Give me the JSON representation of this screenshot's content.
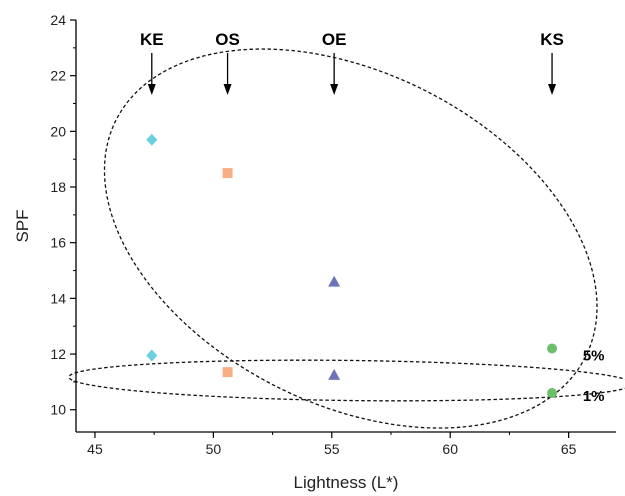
{
  "chart_data": {
    "type": "scatter",
    "title": "",
    "xlabel": "Lightness (L*)",
    "ylabel": "SPF",
    "xlim": [
      44.2,
      67.0
    ],
    "ylim": [
      9.2,
      24.0
    ],
    "xticks": [
      45,
      50,
      55,
      60,
      65
    ],
    "yticks": [
      10,
      12,
      14,
      16,
      18,
      20,
      22,
      24
    ],
    "grid": false,
    "legend": "none",
    "series": [
      {
        "name": "KE",
        "marker": "diamond",
        "color": "#6ccfe0",
        "x": [
          47.4,
          47.4
        ],
        "y": [
          19.7,
          11.95
        ]
      },
      {
        "name": "OS",
        "marker": "square",
        "color": "#f7ae82",
        "x": [
          50.6,
          50.6
        ],
        "y": [
          18.5,
          11.35
        ]
      },
      {
        "name": "OE",
        "marker": "triangle",
        "color": "#6f74b8",
        "x": [
          55.1,
          55.1
        ],
        "y": [
          14.6,
          11.25
        ]
      },
      {
        "name": "KS",
        "marker": "circle",
        "color": "#6cbf6a",
        "x": [
          64.3,
          64.3
        ],
        "y": [
          12.2,
          10.6
        ]
      }
    ],
    "group_labels": [
      {
        "text": "KE",
        "x": 47.4
      },
      {
        "text": "OS",
        "x": 50.6
      },
      {
        "text": "OE",
        "x": 55.1
      },
      {
        "text": "KS",
        "x": 64.3
      }
    ],
    "annotations": [
      {
        "text": "5%",
        "x": 65.6,
        "y": 11.95
      },
      {
        "text": "1%",
        "x": 65.6,
        "y": 10.5
      }
    ],
    "ellipses": [
      {
        "group": "5%",
        "cx": 55.8,
        "cy": 16.15,
        "rx": 11.1,
        "ry": 5.95,
        "rotation_deg": 26.8
      },
      {
        "group": "1%",
        "cx": 55.8,
        "cy": 11.05,
        "rx": 11.9,
        "ry": 0.72,
        "rotation_deg": 0.7
      }
    ]
  }
}
